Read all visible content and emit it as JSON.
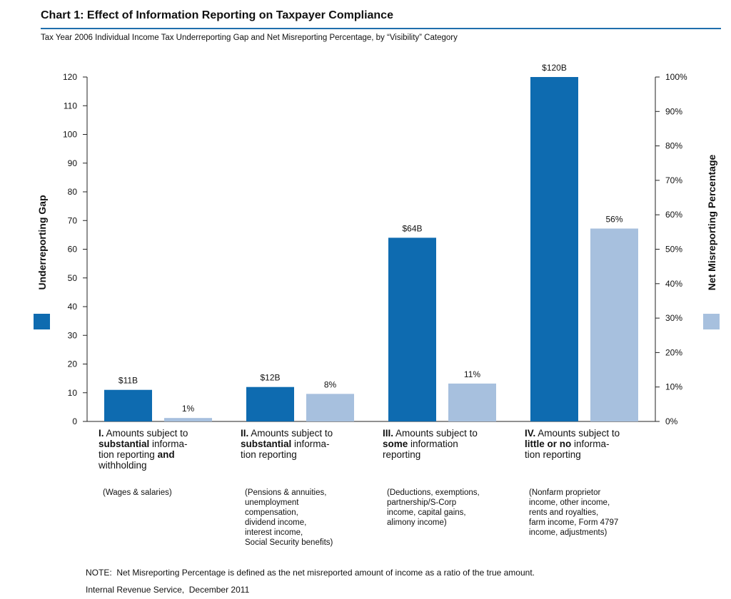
{
  "chart_data": {
    "type": "bar",
    "title": "Chart 1: Effect of Information Reporting on Taxpayer Compliance",
    "subtitle": "Tax Year 2006 Individual Income Tax Underreporting Gap and Net Misreporting Percentage, by “Visibility” Category",
    "categories": [
      [
        [
          {
            "text": "I.",
            "bold": true
          },
          {
            "text": " Amounts subject to",
            "bold": false
          }
        ],
        [
          {
            "text": "substantial",
            "bold": true
          },
          {
            "text": " informa-",
            "bold": false
          }
        ],
        [
          {
            "text": "tion reporting ",
            "bold": false
          },
          {
            "text": "and",
            "bold": true
          }
        ],
        [
          {
            "text": "withholding",
            "bold": false
          }
        ]
      ],
      [
        [
          {
            "text": "II.",
            "bold": true
          },
          {
            "text": " Amounts subject to",
            "bold": false
          }
        ],
        [
          {
            "text": "substantial",
            "bold": true
          },
          {
            "text": " informa-",
            "bold": false
          }
        ],
        [
          {
            "text": "tion reporting",
            "bold": false
          }
        ]
      ],
      [
        [
          {
            "text": "III.",
            "bold": true
          },
          {
            "text": " Amounts subject to",
            "bold": false
          }
        ],
        [
          {
            "text": "some",
            "bold": true
          },
          {
            "text": " information",
            "bold": false
          }
        ],
        [
          {
            "text": "reporting",
            "bold": false
          }
        ]
      ],
      [
        [
          {
            "text": "IV.",
            "bold": true
          },
          {
            "text": " Amounts subject to",
            "bold": false
          }
        ],
        [
          {
            "text": "little or no",
            "bold": true
          },
          {
            "text": " informa-",
            "bold": false
          }
        ],
        [
          {
            "text": "tion reporting",
            "bold": false
          }
        ]
      ]
    ],
    "descriptions": [
      [
        "(Wages & salaries)"
      ],
      [
        "(Pensions & annuities,",
        "unemployment",
        "compensation,",
        "dividend income,",
        "interest income,",
        "Social Security benefits)"
      ],
      [
        "(Deductions, exemptions,",
        "partnership/S-Corp",
        "income, capital gains,",
        "alimony income)"
      ],
      [
        "(Nonfarm proprietor",
        "income, other income,",
        "rents and royalties,",
        "farm income, Form 4797",
        "income, adjustments)"
      ]
    ],
    "series": [
      {
        "name": "Underreporting Gap",
        "color": "#0e6bb0",
        "values": [
          11,
          12,
          64,
          120
        ],
        "value_labels": [
          "$11B",
          "$12B",
          "$64B",
          "$120B"
        ]
      },
      {
        "name": "Net Misreporting Percentage",
        "color": "#a7c0de",
        "axis": "y2",
        "values": [
          1,
          8,
          11,
          56
        ],
        "value_labels": [
          "1%",
          "8%",
          "11%",
          "56%"
        ]
      }
    ],
    "ylim": [
      0,
      120
    ],
    "yticks": [
      0,
      10,
      20,
      30,
      40,
      50,
      60,
      70,
      80,
      90,
      100,
      110,
      120
    ],
    "y2lim": [
      0,
      100
    ],
    "y2ticks": [
      {
        "value": 0,
        "label": "0%"
      },
      {
        "value": 10,
        "label": "10%"
      },
      {
        "value": 20,
        "label": "20%"
      },
      {
        "value": 30,
        "label": "30%"
      },
      {
        "value": 40,
        "label": "40%"
      },
      {
        "value": 50,
        "label": "50%"
      },
      {
        "value": 60,
        "label": "60%"
      },
      {
        "value": 70,
        "label": "70%"
      },
      {
        "value": 80,
        "label": "80%"
      },
      {
        "value": 90,
        "label": "90%"
      },
      {
        "value": 100,
        "label": "100%"
      }
    ],
    "grid": false,
    "note": "NOTE:  Net Misreporting Percentage is defined as the net misreported amount of income as a ratio of the true amount.",
    "source": "Internal Revenue Service,  December 2011"
  }
}
